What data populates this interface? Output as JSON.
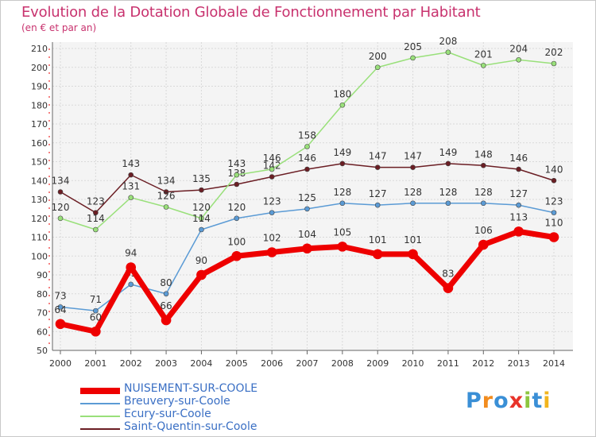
{
  "chart_data": {
    "type": "line",
    "title": "Evolution de la Dotation Globale de Fonctionnement par Habitant",
    "subtitle": "(en € et par an)",
    "xlabel": "",
    "ylabel": "",
    "ylim": [
      50,
      210
    ],
    "y_ticks": [
      50,
      60,
      70,
      80,
      90,
      100,
      110,
      120,
      130,
      140,
      150,
      160,
      170,
      180,
      190,
      200,
      210
    ],
    "x": [
      "2000",
      "2001",
      "2002",
      "2003",
      "2004",
      "2005",
      "2006",
      "2007",
      "2008",
      "2009",
      "2010",
      "2011",
      "2012",
      "2013",
      "2014"
    ],
    "grid": true,
    "legend_position": "bottom-left",
    "series": [
      {
        "name": "Saint-Quentin-sur-Coole",
        "color": "#6b1e24",
        "values": [
          134,
          123,
          143,
          134,
          135,
          138,
          142,
          146,
          149,
          147,
          147,
          149,
          148,
          146,
          140
        ]
      },
      {
        "name": "Ecury-sur-Coole",
        "color": "#99e07a",
        "values": [
          120,
          114,
          131,
          126,
          120,
          143,
          146,
          158,
          180,
          200,
          205,
          208,
          201,
          204,
          202
        ]
      },
      {
        "name": "Breuvery-sur-Coole",
        "color": "#5b9bd5",
        "values": [
          73,
          71,
          85,
          80,
          114,
          120,
          123,
          125,
          128,
          127,
          128,
          128,
          128,
          127,
          123
        ]
      },
      {
        "name": "NUISEMENT-SUR-COOLE",
        "color": "#ee0000",
        "values": [
          64,
          60,
          94,
          66,
          90,
          100,
          102,
          104,
          105,
          101,
          101,
          83,
          106,
          113,
          110
        ]
      }
    ],
    "legend_order": [
      "NUISEMENT-SUR-COOLE",
      "Breuvery-sur-Coole",
      "Ecury-sur-Coole",
      "Saint-Quentin-sur-Coole"
    ]
  },
  "logo": {
    "letters": [
      "P",
      "r",
      "o",
      "x",
      "i",
      "t",
      "i"
    ],
    "colors": [
      "#3a8fd6",
      "#f28c1e",
      "#3a8fd6",
      "#e8332a",
      "#8dc63f",
      "#3a8fd6",
      "#f2b51e"
    ]
  }
}
